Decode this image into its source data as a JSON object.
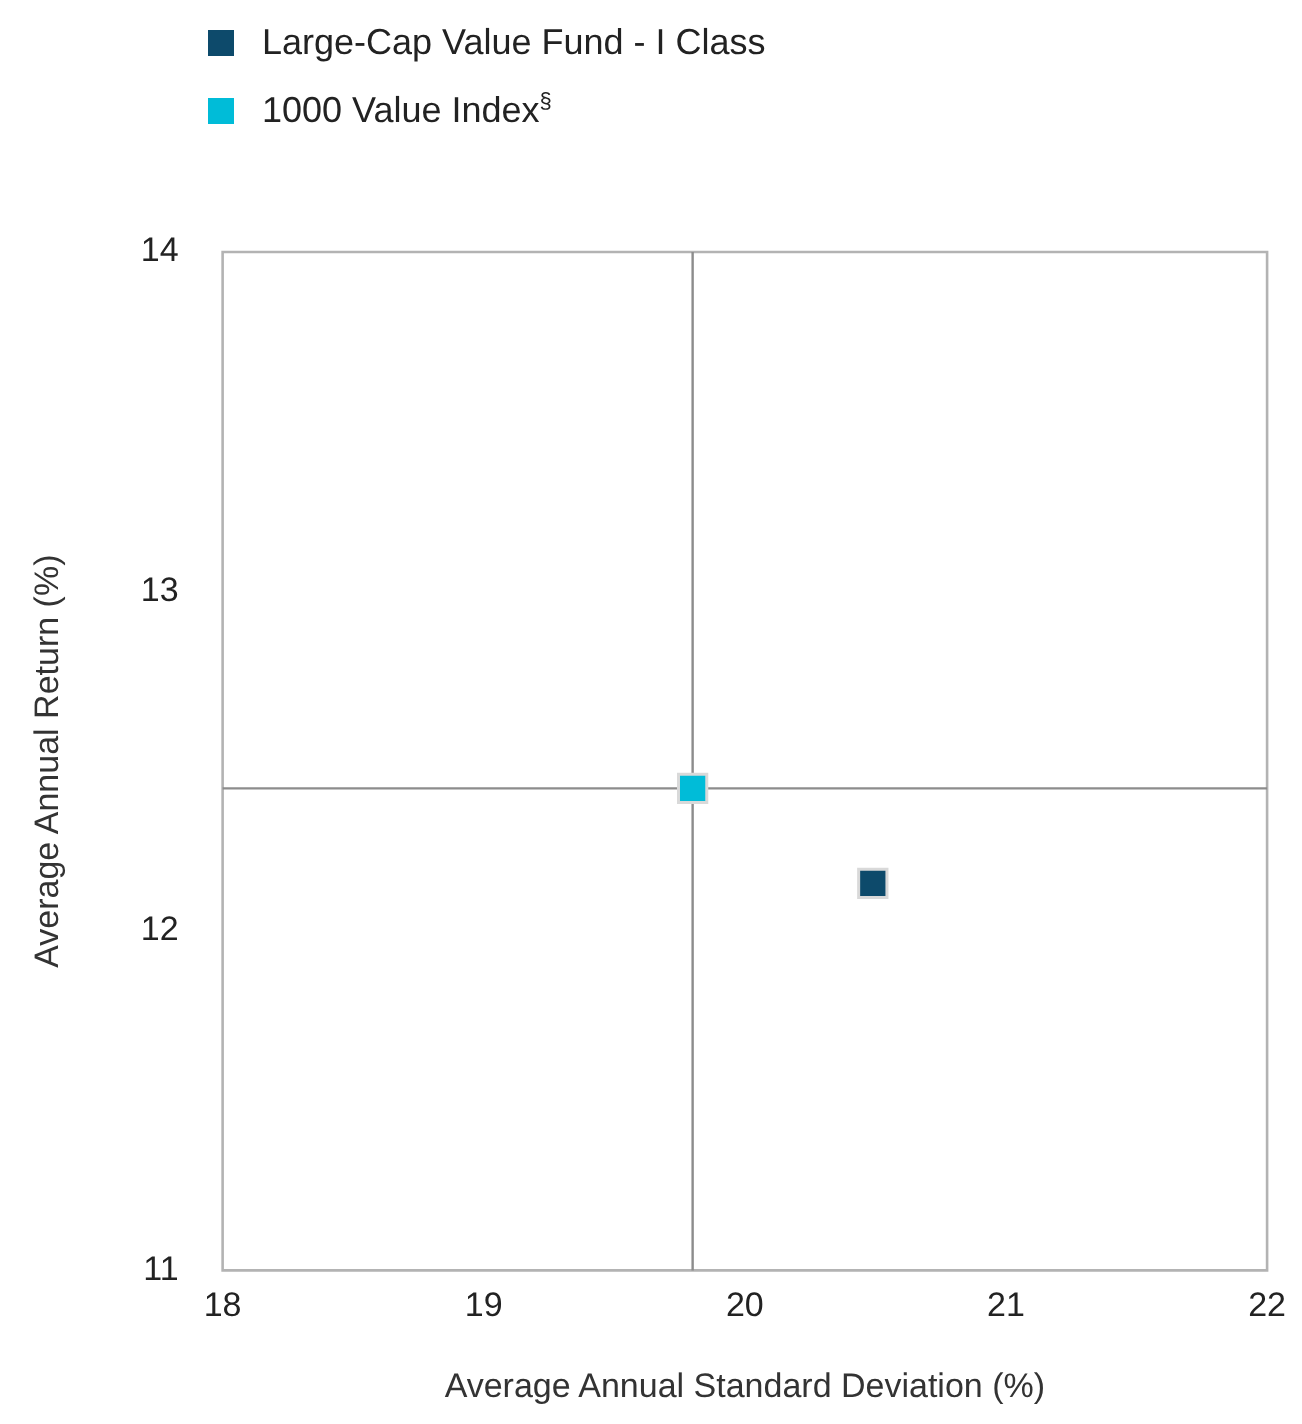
{
  "chart_data": {
    "type": "scatter",
    "xlabel": "Average Annual Standard Deviation (%)",
    "ylabel": "Average Annual Return (%)",
    "series": [
      {
        "name": "Large-Cap Value Fund - I Class",
        "color": "#0d4a6b",
        "x": [
          20.49
        ],
        "values": [
          12.14
        ]
      },
      {
        "name": "1000 Value Index$^{§}$",
        "color": "#00bcd8",
        "x": [
          19.8
        ],
        "values": [
          12.42
        ]
      }
    ],
    "xlim": [
      18,
      22
    ],
    "xticks": [
      18,
      19,
      20,
      21,
      22
    ],
    "ylim": [
      11,
      14
    ],
    "yticks": [
      11,
      12,
      13,
      14
    ],
    "ref_lines": [
      {
        "axis": "x",
        "value": 19.8,
        "color": "#8c8c8c"
      },
      {
        "axis": "y",
        "value": 12.42,
        "color": "#8c8c8c"
      }
    ],
    "grid": false,
    "legend": "top left",
    "marker": "square"
  }
}
